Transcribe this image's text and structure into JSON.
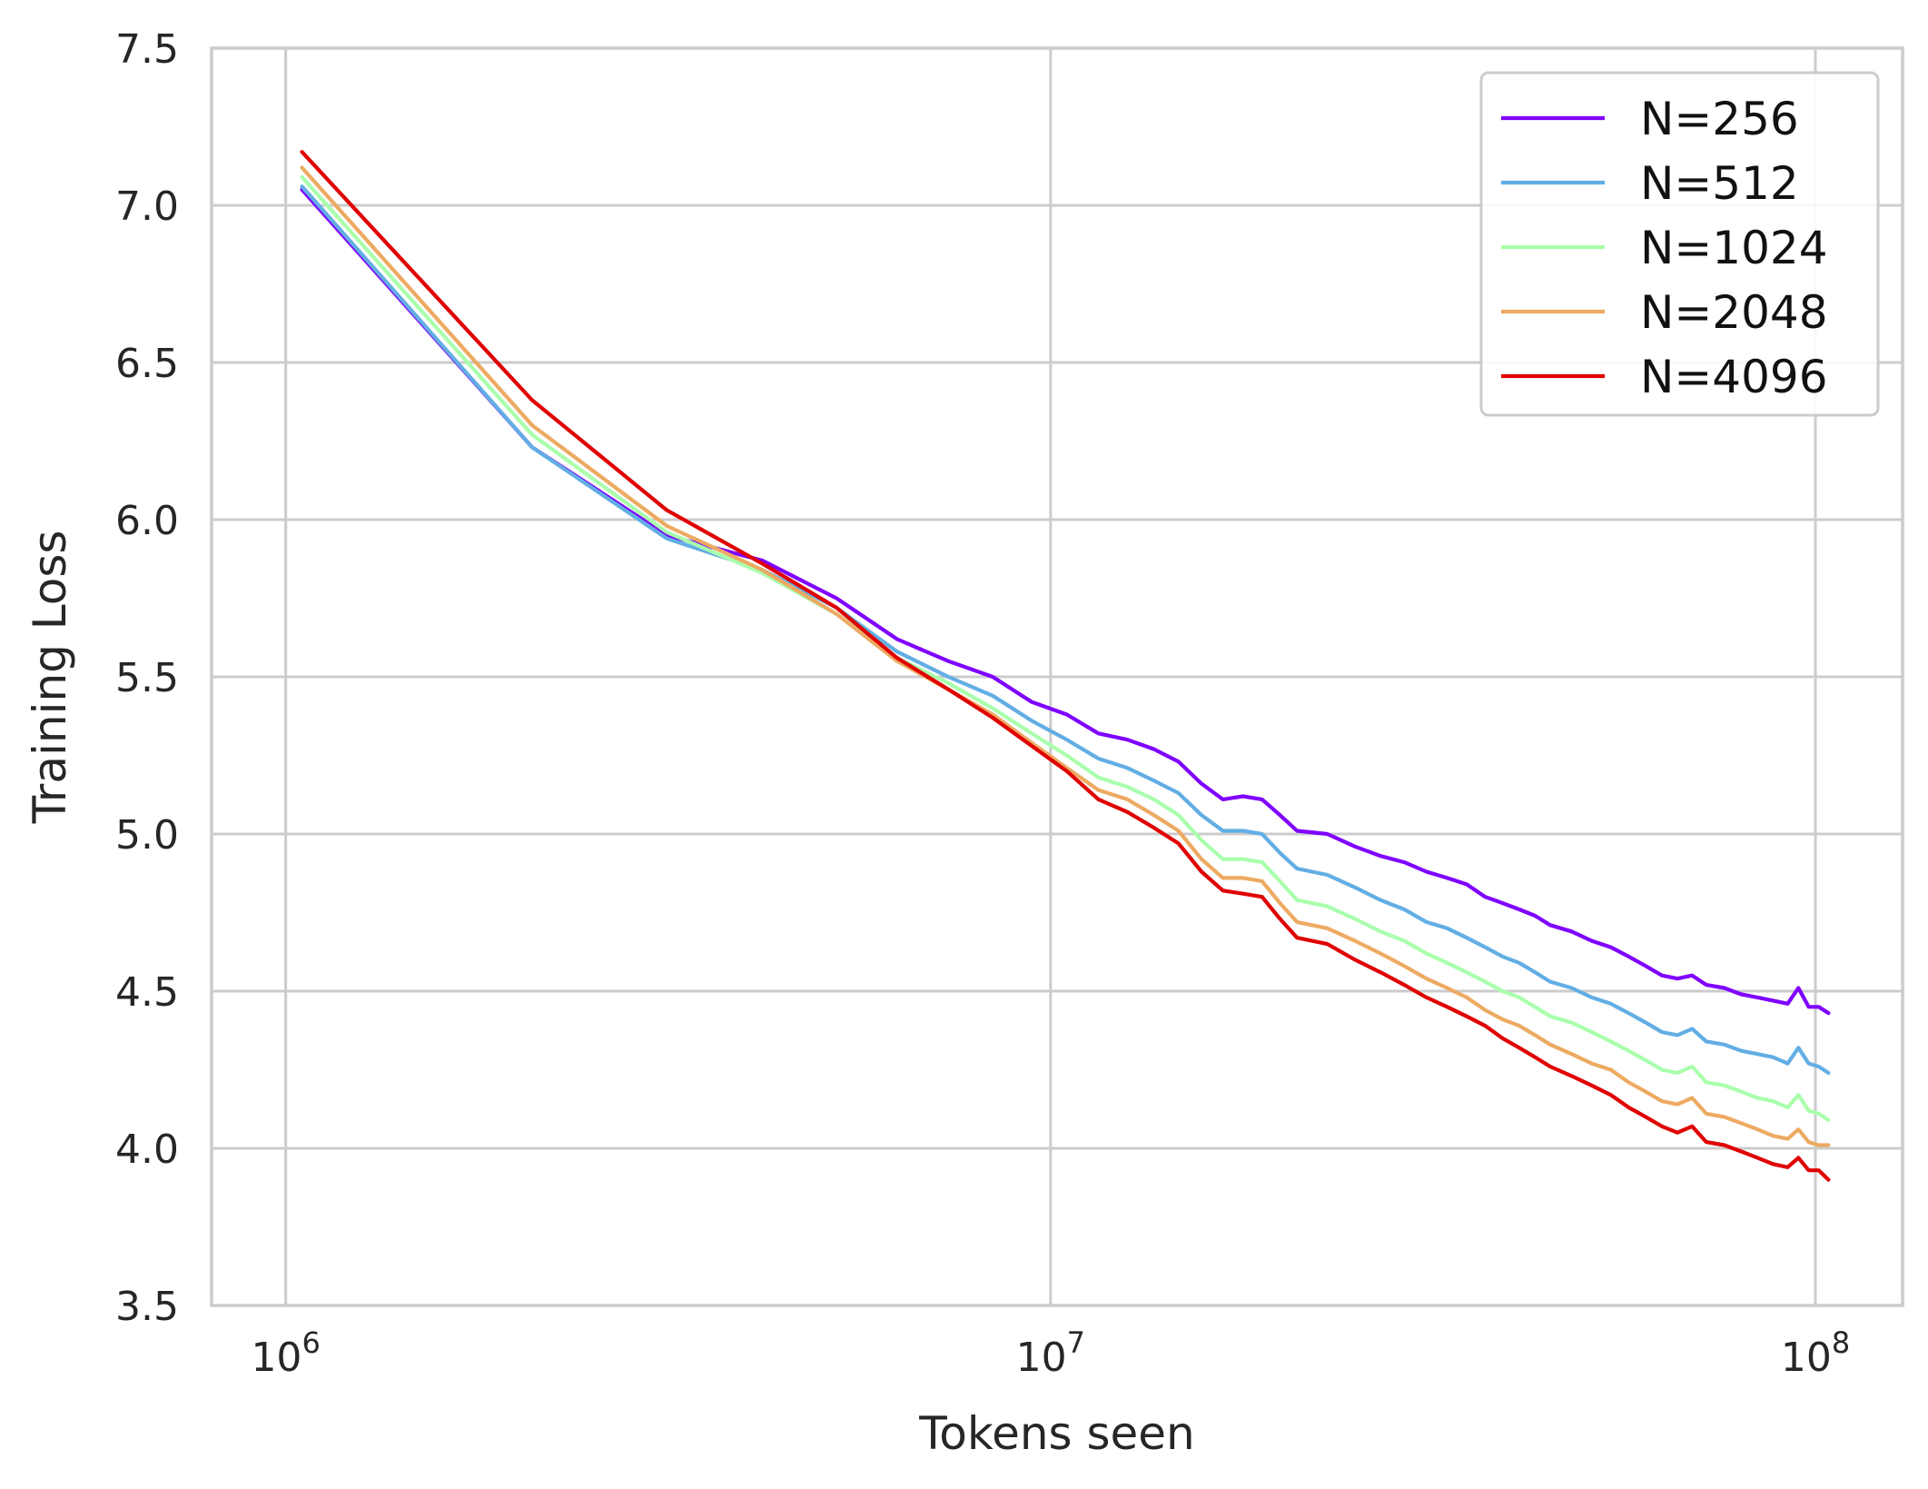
{
  "chart_data": {
    "type": "line",
    "title": "",
    "xlabel": "Tokens seen",
    "ylabel": "Training Loss",
    "xscale": "log",
    "xlim": [
      800000,
      130000000
    ],
    "ylim": [
      3.5,
      7.5
    ],
    "x_ticks": [
      {
        "value": 1000000,
        "base": "10",
        "exp": "6"
      },
      {
        "value": 10000000,
        "base": "10",
        "exp": "7"
      },
      {
        "value": 100000000,
        "base": "10",
        "exp": "8"
      }
    ],
    "y_ticks": [
      "3.5",
      "4.0",
      "4.5",
      "5.0",
      "5.5",
      "6.0",
      "6.5",
      "7.0",
      "7.5"
    ],
    "grid": true,
    "legend_position": "top-right",
    "series": [
      {
        "name": "N=256",
        "color": "#7f00ff",
        "points": [
          [
            1050000,
            7.05
          ],
          [
            2100000,
            6.23
          ],
          [
            3150000,
            5.95
          ],
          [
            4200000,
            5.87
          ],
          [
            5250000,
            5.75
          ],
          [
            6300000,
            5.62
          ],
          [
            7350000,
            5.55
          ],
          [
            8400000,
            5.5
          ],
          [
            9450000,
            5.42
          ],
          [
            10500000,
            5.38
          ],
          [
            11550000,
            5.32
          ],
          [
            12600000,
            5.3
          ],
          [
            13650000,
            5.27
          ],
          [
            14700000,
            5.23
          ],
          [
            15750000,
            5.16
          ],
          [
            16800000,
            5.11
          ],
          [
            17850000,
            5.12
          ],
          [
            18900000,
            5.11
          ],
          [
            19950000,
            5.06
          ],
          [
            21000000,
            5.01
          ],
          [
            23000000,
            5.0
          ],
          [
            25000000,
            4.96
          ],
          [
            27000000,
            4.93
          ],
          [
            29000000,
            4.91
          ],
          [
            31000000,
            4.88
          ],
          [
            33000000,
            4.86
          ],
          [
            35000000,
            4.84
          ],
          [
            37000000,
            4.8
          ],
          [
            39000000,
            4.78
          ],
          [
            41000000,
            4.76
          ],
          [
            43000000,
            4.74
          ],
          [
            45000000,
            4.71
          ],
          [
            48000000,
            4.69
          ],
          [
            51000000,
            4.66
          ],
          [
            54000000,
            4.64
          ],
          [
            57000000,
            4.61
          ],
          [
            60000000,
            4.58
          ],
          [
            63000000,
            4.55
          ],
          [
            66000000,
            4.54
          ],
          [
            69000000,
            4.55
          ],
          [
            72000000,
            4.52
          ],
          [
            76000000,
            4.51
          ],
          [
            80000000,
            4.49
          ],
          [
            84000000,
            4.48
          ],
          [
            88000000,
            4.47
          ],
          [
            92000000,
            4.46
          ],
          [
            95000000,
            4.51
          ],
          [
            98000000,
            4.45
          ],
          [
            101000000,
            4.45
          ],
          [
            104000000,
            4.43
          ]
        ]
      },
      {
        "name": "N=512",
        "color": "#62aee4",
        "points": [
          [
            1050000,
            7.06
          ],
          [
            2100000,
            6.23
          ],
          [
            3150000,
            5.94
          ],
          [
            4200000,
            5.84
          ],
          [
            5250000,
            5.72
          ],
          [
            6300000,
            5.58
          ],
          [
            7350000,
            5.5
          ],
          [
            8400000,
            5.44
          ],
          [
            9450000,
            5.36
          ],
          [
            10500000,
            5.3
          ],
          [
            11550000,
            5.24
          ],
          [
            12600000,
            5.21
          ],
          [
            13650000,
            5.17
          ],
          [
            14700000,
            5.13
          ],
          [
            15750000,
            5.06
          ],
          [
            16800000,
            5.01
          ],
          [
            17850000,
            5.01
          ],
          [
            18900000,
            5.0
          ],
          [
            19950000,
            4.94
          ],
          [
            21000000,
            4.89
          ],
          [
            23000000,
            4.87
          ],
          [
            25000000,
            4.83
          ],
          [
            27000000,
            4.79
          ],
          [
            29000000,
            4.76
          ],
          [
            31000000,
            4.72
          ],
          [
            33000000,
            4.7
          ],
          [
            35000000,
            4.67
          ],
          [
            37000000,
            4.64
          ],
          [
            39000000,
            4.61
          ],
          [
            41000000,
            4.59
          ],
          [
            43000000,
            4.56
          ],
          [
            45000000,
            4.53
          ],
          [
            48000000,
            4.51
          ],
          [
            51000000,
            4.48
          ],
          [
            54000000,
            4.46
          ],
          [
            57000000,
            4.43
          ],
          [
            60000000,
            4.4
          ],
          [
            63000000,
            4.37
          ],
          [
            66000000,
            4.36
          ],
          [
            69000000,
            4.38
          ],
          [
            72000000,
            4.34
          ],
          [
            76000000,
            4.33
          ],
          [
            80000000,
            4.31
          ],
          [
            84000000,
            4.3
          ],
          [
            88000000,
            4.29
          ],
          [
            92000000,
            4.27
          ],
          [
            95000000,
            4.32
          ],
          [
            98000000,
            4.27
          ],
          [
            101000000,
            4.26
          ],
          [
            104000000,
            4.24
          ]
        ]
      },
      {
        "name": "N=1024",
        "color": "#a9ffac",
        "points": [
          [
            1050000,
            7.09
          ],
          [
            2100000,
            6.27
          ],
          [
            3150000,
            5.96
          ],
          [
            4200000,
            5.83
          ],
          [
            5250000,
            5.7
          ],
          [
            6300000,
            5.56
          ],
          [
            7350000,
            5.48
          ],
          [
            8400000,
            5.4
          ],
          [
            9450000,
            5.32
          ],
          [
            10500000,
            5.25
          ],
          [
            11550000,
            5.18
          ],
          [
            12600000,
            5.15
          ],
          [
            13650000,
            5.11
          ],
          [
            14700000,
            5.06
          ],
          [
            15750000,
            4.98
          ],
          [
            16800000,
            4.92
          ],
          [
            17850000,
            4.92
          ],
          [
            18900000,
            4.91
          ],
          [
            19950000,
            4.85
          ],
          [
            21000000,
            4.79
          ],
          [
            23000000,
            4.77
          ],
          [
            25000000,
            4.73
          ],
          [
            27000000,
            4.69
          ],
          [
            29000000,
            4.66
          ],
          [
            31000000,
            4.62
          ],
          [
            33000000,
            4.59
          ],
          [
            35000000,
            4.56
          ],
          [
            37000000,
            4.53
          ],
          [
            39000000,
            4.5
          ],
          [
            41000000,
            4.48
          ],
          [
            43000000,
            4.45
          ],
          [
            45000000,
            4.42
          ],
          [
            48000000,
            4.4
          ],
          [
            51000000,
            4.37
          ],
          [
            54000000,
            4.34
          ],
          [
            57000000,
            4.31
          ],
          [
            60000000,
            4.28
          ],
          [
            63000000,
            4.25
          ],
          [
            66000000,
            4.24
          ],
          [
            69000000,
            4.26
          ],
          [
            72000000,
            4.21
          ],
          [
            76000000,
            4.2
          ],
          [
            80000000,
            4.18
          ],
          [
            84000000,
            4.16
          ],
          [
            88000000,
            4.15
          ],
          [
            92000000,
            4.13
          ],
          [
            95000000,
            4.17
          ],
          [
            98000000,
            4.12
          ],
          [
            101000000,
            4.11
          ],
          [
            104000000,
            4.09
          ]
        ]
      },
      {
        "name": "N=2048",
        "color": "#edaa62",
        "points": [
          [
            1050000,
            7.12
          ],
          [
            2100000,
            6.3
          ],
          [
            3150000,
            5.98
          ],
          [
            4200000,
            5.84
          ],
          [
            5250000,
            5.7
          ],
          [
            6300000,
            5.55
          ],
          [
            7350000,
            5.46
          ],
          [
            8400000,
            5.38
          ],
          [
            9450000,
            5.29
          ],
          [
            10500000,
            5.21
          ],
          [
            11550000,
            5.14
          ],
          [
            12600000,
            5.11
          ],
          [
            13650000,
            5.06
          ],
          [
            14700000,
            5.01
          ],
          [
            15750000,
            4.92
          ],
          [
            16800000,
            4.86
          ],
          [
            17850000,
            4.86
          ],
          [
            18900000,
            4.85
          ],
          [
            19950000,
            4.78
          ],
          [
            21000000,
            4.72
          ],
          [
            23000000,
            4.7
          ],
          [
            25000000,
            4.66
          ],
          [
            27000000,
            4.62
          ],
          [
            29000000,
            4.58
          ],
          [
            31000000,
            4.54
          ],
          [
            33000000,
            4.51
          ],
          [
            35000000,
            4.48
          ],
          [
            37000000,
            4.44
          ],
          [
            39000000,
            4.41
          ],
          [
            41000000,
            4.39
          ],
          [
            43000000,
            4.36
          ],
          [
            45000000,
            4.33
          ],
          [
            48000000,
            4.3
          ],
          [
            51000000,
            4.27
          ],
          [
            54000000,
            4.25
          ],
          [
            57000000,
            4.21
          ],
          [
            60000000,
            4.18
          ],
          [
            63000000,
            4.15
          ],
          [
            66000000,
            4.14
          ],
          [
            69000000,
            4.16
          ],
          [
            72000000,
            4.11
          ],
          [
            76000000,
            4.1
          ],
          [
            80000000,
            4.08
          ],
          [
            84000000,
            4.06
          ],
          [
            88000000,
            4.04
          ],
          [
            92000000,
            4.03
          ],
          [
            95000000,
            4.06
          ],
          [
            98000000,
            4.02
          ],
          [
            101000000,
            4.01
          ],
          [
            104000000,
            4.01
          ]
        ]
      },
      {
        "name": "N=4096",
        "color": "#e00000",
        "points": [
          [
            1050000,
            7.17
          ],
          [
            2100000,
            6.38
          ],
          [
            3150000,
            6.03
          ],
          [
            4200000,
            5.86
          ],
          [
            5250000,
            5.72
          ],
          [
            6300000,
            5.56
          ],
          [
            7350000,
            5.46
          ],
          [
            8400000,
            5.37
          ],
          [
            9450000,
            5.28
          ],
          [
            10500000,
            5.2
          ],
          [
            11550000,
            5.11
          ],
          [
            12600000,
            5.07
          ],
          [
            13650000,
            5.02
          ],
          [
            14700000,
            4.97
          ],
          [
            15750000,
            4.88
          ],
          [
            16800000,
            4.82
          ],
          [
            17850000,
            4.81
          ],
          [
            18900000,
            4.8
          ],
          [
            19950000,
            4.73
          ],
          [
            21000000,
            4.67
          ],
          [
            23000000,
            4.65
          ],
          [
            25000000,
            4.6
          ],
          [
            27000000,
            4.56
          ],
          [
            29000000,
            4.52
          ],
          [
            31000000,
            4.48
          ],
          [
            33000000,
            4.45
          ],
          [
            35000000,
            4.42
          ],
          [
            37000000,
            4.39
          ],
          [
            39000000,
            4.35
          ],
          [
            41000000,
            4.32
          ],
          [
            43000000,
            4.29
          ],
          [
            45000000,
            4.26
          ],
          [
            48000000,
            4.23
          ],
          [
            51000000,
            4.2
          ],
          [
            54000000,
            4.17
          ],
          [
            57000000,
            4.13
          ],
          [
            60000000,
            4.1
          ],
          [
            63000000,
            4.07
          ],
          [
            66000000,
            4.05
          ],
          [
            69000000,
            4.07
          ],
          [
            72000000,
            4.02
          ],
          [
            76000000,
            4.01
          ],
          [
            80000000,
            3.99
          ],
          [
            84000000,
            3.97
          ],
          [
            88000000,
            3.95
          ],
          [
            92000000,
            3.94
          ],
          [
            95000000,
            3.97
          ],
          [
            98000000,
            3.93
          ],
          [
            101000000,
            3.93
          ],
          [
            104000000,
            3.9
          ]
        ]
      }
    ]
  }
}
